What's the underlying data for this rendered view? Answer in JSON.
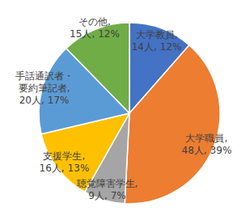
{
  "chart_data": {
    "type": "pie",
    "categories": [
      "大学教員,",
      "大学職員,",
      "聴覚障害学生,",
      "支援学生,",
      "手話通訳者・要約筆記者,",
      "その他,"
    ],
    "values": [
      14,
      48,
      9,
      16,
      20,
      15
    ],
    "value_labels": [
      "14人,",
      "48人,",
      "9人,",
      "16人,",
      "20人,",
      "15人,"
    ],
    "percents": [
      12,
      39,
      7,
      13,
      17,
      12
    ],
    "percent_labels": [
      "12%",
      "39%",
      "7%",
      "13%",
      "17%",
      "12%"
    ],
    "colors": [
      "#4472c4",
      "#ed7d31",
      "#a5a5a5",
      "#ffc000",
      "#5b9bd5",
      "#70ad47"
    ],
    "data_labels": true
  }
}
